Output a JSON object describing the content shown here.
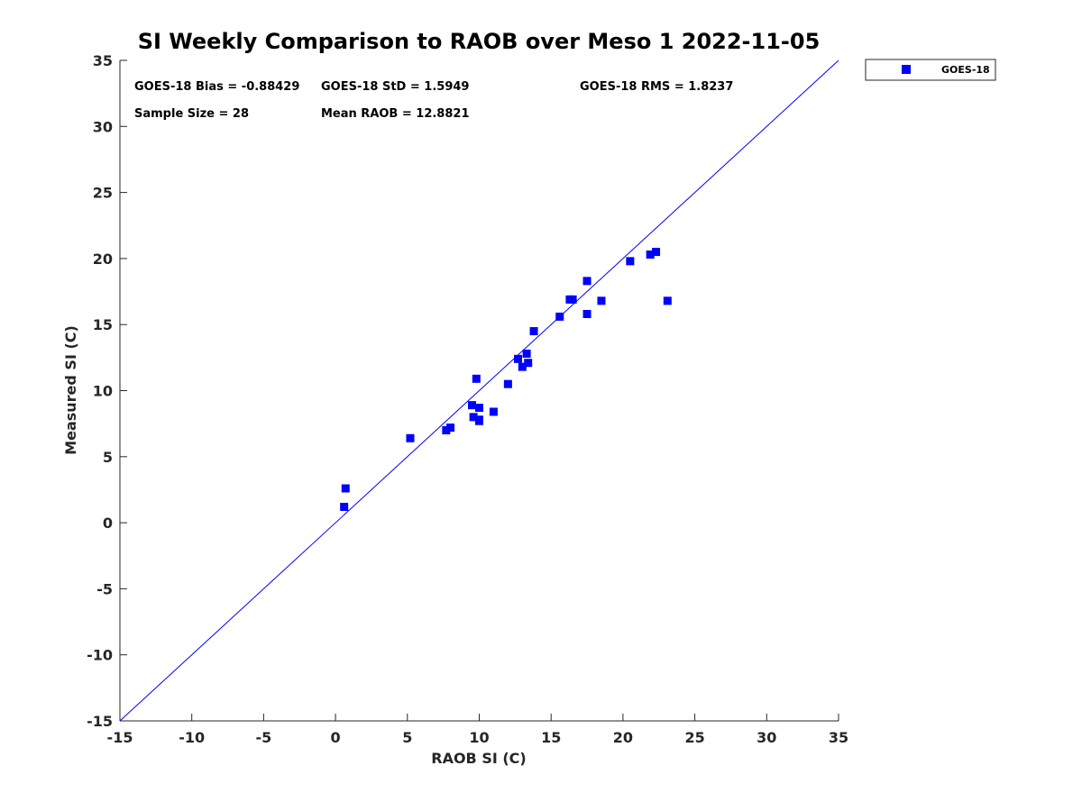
{
  "chart_data": {
    "type": "scatter",
    "title": "SI Weekly Comparison to RAOB over Meso 1 2022-11-05",
    "xlabel": "RAOB SI (C)",
    "ylabel": "Measured SI (C)",
    "xlim": [
      -15,
      35
    ],
    "ylim": [
      -15,
      35
    ],
    "xticks": [
      -15,
      -10,
      -5,
      0,
      5,
      10,
      15,
      20,
      25,
      30,
      35
    ],
    "yticks": [
      -15,
      -10,
      -5,
      0,
      5,
      10,
      15,
      20,
      25,
      30,
      35
    ],
    "grid": false,
    "legend_position": "outside-top-right",
    "reference_line": {
      "type": "one-to-one",
      "color": "#0000ff"
    },
    "marker_color": "#0000ff",
    "series": [
      {
        "name": "GOES-18",
        "points": [
          [
            0.6,
            1.2
          ],
          [
            0.7,
            2.6
          ],
          [
            5.2,
            6.4
          ],
          [
            7.7,
            7.0
          ],
          [
            8.0,
            7.2
          ],
          [
            9.5,
            8.9
          ],
          [
            9.6,
            8.0
          ],
          [
            9.8,
            10.9
          ],
          [
            10.0,
            8.7
          ],
          [
            10.0,
            7.8
          ],
          [
            10.0,
            7.7
          ],
          [
            11.0,
            8.4
          ],
          [
            12.0,
            10.5
          ],
          [
            12.7,
            12.4
          ],
          [
            13.0,
            11.8
          ],
          [
            13.3,
            12.8
          ],
          [
            13.4,
            12.1
          ],
          [
            13.8,
            14.5
          ],
          [
            15.6,
            15.6
          ],
          [
            16.3,
            16.9
          ],
          [
            16.5,
            16.9
          ],
          [
            17.5,
            18.3
          ],
          [
            17.5,
            15.8
          ],
          [
            18.5,
            16.8
          ],
          [
            20.5,
            19.8
          ],
          [
            21.9,
            20.3
          ],
          [
            22.3,
            20.5
          ],
          [
            23.1,
            16.8
          ]
        ]
      }
    ],
    "stats": {
      "bias": "GOES-18 Bias = -0.88429",
      "std": "GOES-18 StD = 1.5949",
      "rms": "GOES-18 RMS = 1.8237",
      "sample_size": "Sample Size = 28",
      "mean_raob": "Mean RAOB = 12.8821"
    }
  }
}
